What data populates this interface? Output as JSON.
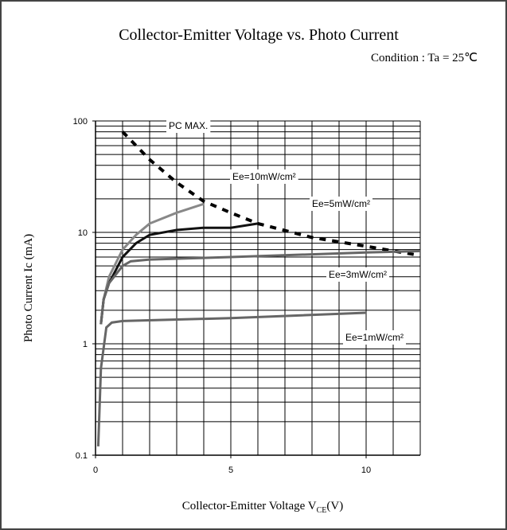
{
  "chart_data": {
    "type": "line",
    "title": "Collector-Emitter Voltage vs. Photo Current",
    "subtitle": "Condition : Ta = 25℃",
    "y_label": "Photo Current Ic (mA)",
    "x_label": "Collector-Emitter Voltage V",
    "x_label_sub": "CE",
    "x_label_unit": "(V)",
    "log_y": true,
    "xlim": [
      0,
      12
    ],
    "ylim": [
      0.1,
      100
    ],
    "xticks": [
      0,
      5,
      10
    ],
    "yticks": [
      0.1,
      1,
      10,
      100
    ],
    "xgrid": [
      1,
      2,
      3,
      4,
      5,
      6,
      7,
      8,
      9,
      10,
      11,
      12
    ],
    "ygrid": [
      0.2,
      0.3,
      0.4,
      0.5,
      0.6,
      0.7,
      0.8,
      0.9,
      1,
      2,
      3,
      4,
      5,
      6,
      7,
      8,
      9,
      10,
      20,
      30,
      40,
      50,
      60,
      70,
      80,
      90,
      100
    ],
    "series": [
      {
        "name": "PC MAX.",
        "color": "#000000",
        "dashed": true,
        "x": [
          1,
          2,
          3,
          4,
          5,
          6,
          8,
          10,
          12
        ],
        "values": [
          80,
          45,
          28,
          19,
          15,
          12,
          9,
          7.5,
          6.2
        ]
      },
      {
        "name": "Ee=10mW/cm²",
        "color": "#888888",
        "x": [
          0.2,
          0.3,
          0.5,
          1,
          1.5,
          2,
          3,
          4
        ],
        "values": [
          1.5,
          2.5,
          4,
          7,
          9.5,
          12,
          15,
          18
        ]
      },
      {
        "name": "Ee=5mW/cm²",
        "color": "#111111",
        "x": [
          0.2,
          0.3,
          0.5,
          1,
          1.5,
          2,
          3,
          4,
          5,
          6
        ],
        "values": [
          1.5,
          2.5,
          3.5,
          6,
          8,
          9.5,
          10.5,
          11,
          11,
          12
        ]
      },
      {
        "name": "Ee=3mW/cm²",
        "color": "#666666",
        "x": [
          0.2,
          0.3,
          0.5,
          1,
          1.3,
          2,
          5,
          10,
          12
        ],
        "values": [
          1.5,
          2.5,
          3.5,
          5,
          5.5,
          5.7,
          6,
          6.6,
          6.8
        ]
      },
      {
        "name": "Ee=1mW/cm²",
        "color": "#666666",
        "x": [
          0.1,
          0.2,
          0.4,
          0.6,
          1,
          5,
          10
        ],
        "values": [
          0.12,
          0.6,
          1.4,
          1.55,
          1.6,
          1.7,
          1.9
        ]
      }
    ]
  }
}
